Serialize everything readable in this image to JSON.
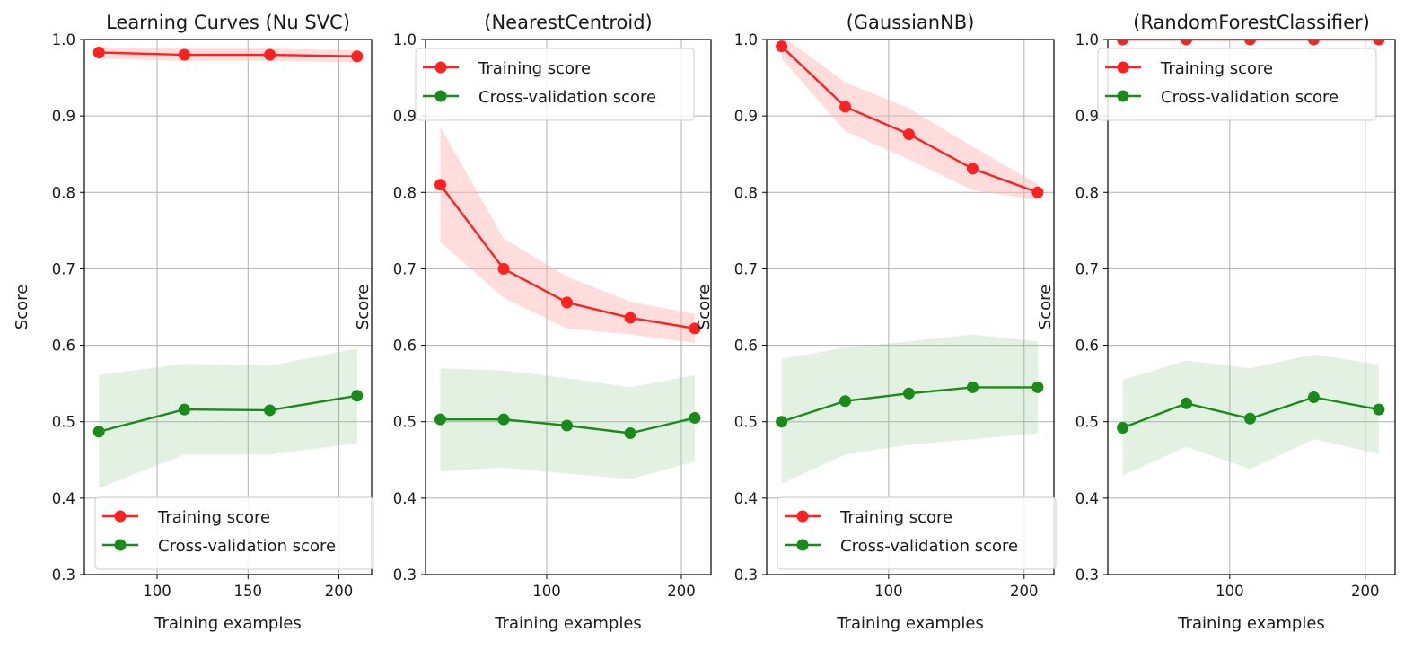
{
  "colors": {
    "training": "#ff2020",
    "training_band": "#ffb3b3",
    "cv": "#1a8a1a",
    "cv_band": "#8fc98f",
    "grid": "#b0b0b0",
    "axes": "#000000"
  },
  "legend_labels": {
    "training": "Training score",
    "cv": "Cross-validation score"
  },
  "chart_data": [
    {
      "type": "line",
      "title": "Learning Curves (Nu SVC)",
      "xlabel": "Training examples",
      "ylabel": "Score",
      "xlim": [
        60,
        218
      ],
      "ylim": [
        0.3,
        1.0
      ],
      "xticks": [
        100,
        150,
        200
      ],
      "yticks": [
        0.3,
        0.4,
        0.5,
        0.6,
        0.7,
        0.8,
        0.9,
        1.0
      ],
      "grid": true,
      "legend_position": "bottom-right",
      "x": [
        68,
        115,
        162,
        210
      ],
      "series": [
        {
          "name": "Training score",
          "values": [
            0.983,
            0.98,
            0.98,
            0.978
          ],
          "band_low": [
            0.975,
            0.972,
            0.972,
            0.97
          ],
          "band_high": [
            0.99,
            0.988,
            0.988,
            0.986
          ]
        },
        {
          "name": "Cross-validation score",
          "values": [
            0.487,
            0.516,
            0.515,
            0.534
          ],
          "band_low": [
            0.413,
            0.457,
            0.457,
            0.472
          ],
          "band_high": [
            0.561,
            0.576,
            0.573,
            0.596
          ]
        }
      ]
    },
    {
      "type": "line",
      "title": "(NearestCentroid)",
      "xlabel": "Training examples",
      "ylabel": "Score",
      "xlim": [
        10,
        222
      ],
      "ylim": [
        0.3,
        1.0
      ],
      "xticks": [
        100,
        200
      ],
      "yticks": [
        0.3,
        0.4,
        0.5,
        0.6,
        0.7,
        0.8,
        0.9,
        1.0
      ],
      "grid": true,
      "legend_position": "top-left",
      "x": [
        21,
        68,
        115,
        162,
        210
      ],
      "series": [
        {
          "name": "Training score",
          "values": [
            0.81,
            0.7,
            0.656,
            0.636,
            0.622
          ],
          "band_low": [
            0.735,
            0.662,
            0.622,
            0.614,
            0.603
          ],
          "band_high": [
            0.886,
            0.74,
            0.69,
            0.657,
            0.641
          ]
        },
        {
          "name": "Cross-validation score",
          "values": [
            0.503,
            0.503,
            0.495,
            0.485,
            0.505
          ],
          "band_low": [
            0.435,
            0.44,
            0.432,
            0.425,
            0.448
          ],
          "band_high": [
            0.57,
            0.567,
            0.557,
            0.545,
            0.561
          ]
        }
      ]
    },
    {
      "type": "line",
      "title": "(GaussianNB)",
      "xlabel": "Training examples",
      "ylabel": "Score",
      "xlim": [
        10,
        222
      ],
      "ylim": [
        0.3,
        1.0
      ],
      "xticks": [
        100,
        200
      ],
      "yticks": [
        0.3,
        0.4,
        0.5,
        0.6,
        0.7,
        0.8,
        0.9,
        1.0
      ],
      "grid": true,
      "legend_position": "bottom-right",
      "x": [
        21,
        68,
        115,
        162,
        210
      ],
      "series": [
        {
          "name": "Training score",
          "values": [
            0.991,
            0.912,
            0.876,
            0.831,
            0.8
          ],
          "band_low": [
            0.975,
            0.88,
            0.843,
            0.803,
            0.79
          ],
          "band_high": [
            1.005,
            0.944,
            0.91,
            0.86,
            0.811
          ]
        },
        {
          "name": "Cross-validation score",
          "values": [
            0.5,
            0.527,
            0.537,
            0.545,
            0.545
          ],
          "band_low": [
            0.419,
            0.457,
            0.47,
            0.477,
            0.485
          ],
          "band_high": [
            0.582,
            0.597,
            0.605,
            0.614,
            0.605
          ]
        }
      ]
    },
    {
      "type": "line",
      "title": "(RandomForestClassifier)",
      "xlabel": "Training examples",
      "ylabel": "Score",
      "xlim": [
        10,
        222
      ],
      "ylim": [
        0.3,
        1.0
      ],
      "xticks": [
        100,
        200
      ],
      "yticks": [
        0.3,
        0.4,
        0.5,
        0.6,
        0.7,
        0.8,
        0.9,
        1.0
      ],
      "grid": true,
      "legend_position": "top-left",
      "x": [
        21,
        68,
        115,
        162,
        210
      ],
      "series": [
        {
          "name": "Training score",
          "values": [
            1.0,
            1.0,
            1.0,
            1.0,
            1.0
          ],
          "band_low": [
            1.0,
            1.0,
            1.0,
            1.0,
            1.0
          ],
          "band_high": [
            1.0,
            1.0,
            1.0,
            1.0,
            1.0
          ]
        },
        {
          "name": "Cross-validation score",
          "values": [
            0.492,
            0.524,
            0.504,
            0.532,
            0.516
          ],
          "band_low": [
            0.43,
            0.467,
            0.438,
            0.477,
            0.458
          ],
          "band_high": [
            0.555,
            0.58,
            0.57,
            0.588,
            0.575
          ]
        }
      ]
    }
  ]
}
